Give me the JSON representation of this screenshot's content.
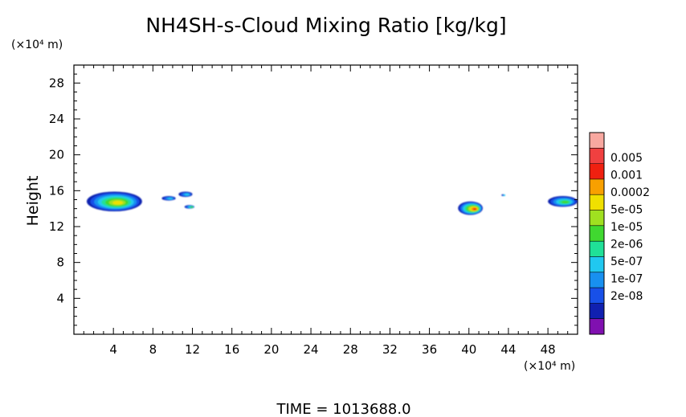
{
  "chart_data": {
    "type": "heatmap",
    "title": "NH4SH-s-Cloud Mixing Ratio [kg/kg]",
    "ylabel": "Height",
    "y_unit": "(×10⁴ m)",
    "x_unit": "(×10⁴ m)",
    "xlim": [
      0,
      51
    ],
    "ylim": [
      0,
      30
    ],
    "x_ticks": [
      "4",
      "8",
      "12",
      "16",
      "20",
      "24",
      "28",
      "32",
      "36",
      "40",
      "44",
      "48"
    ],
    "y_ticks": [
      "4",
      "8",
      "12",
      "16",
      "20",
      "24",
      "28"
    ],
    "grid": false,
    "legend_position": "right",
    "colorbar": {
      "labels": [
        "0.005",
        "0.001",
        "0.0002",
        "5e-05",
        "1e-05",
        "2e-06",
        "5e-07",
        "1e-07",
        "2e-08"
      ],
      "colors": [
        "#f8a8a0",
        "#f04040",
        "#f02010",
        "#f8a000",
        "#f0e000",
        "#a0e020",
        "#40d830",
        "#20e098",
        "#20c8f0",
        "#1890f0",
        "#1850e8",
        "#1020b0",
        "#8010b0"
      ]
    },
    "clouds": [
      {
        "x": [
          1.3,
          6.9
        ],
        "y": [
          13.7,
          15.9
        ],
        "peak_level": "5e-05"
      },
      {
        "x": [
          8.9,
          10.3
        ],
        "y": [
          14.9,
          15.4
        ],
        "peak_level": "1e-07"
      },
      {
        "x": [
          10.6,
          12.0
        ],
        "y": [
          15.3,
          15.9
        ],
        "peak_level": "1e-07"
      },
      {
        "x": [
          11.2,
          12.2
        ],
        "y": [
          14.0,
          14.4
        ],
        "peak_level": "2e-06"
      },
      {
        "x": [
          38.9,
          41.4
        ],
        "y": [
          13.3,
          14.8
        ],
        "peak_level": "0.001"
      },
      {
        "x": [
          43.3,
          43.6
        ],
        "y": [
          15.4,
          15.6
        ],
        "peak_level": "1e-07"
      },
      {
        "x": [
          48.0,
          51.0
        ],
        "y": [
          14.2,
          15.4
        ],
        "peak_level": "2e-06"
      }
    ]
  },
  "footer": {
    "time_label": "TIME = 1013688.0"
  }
}
